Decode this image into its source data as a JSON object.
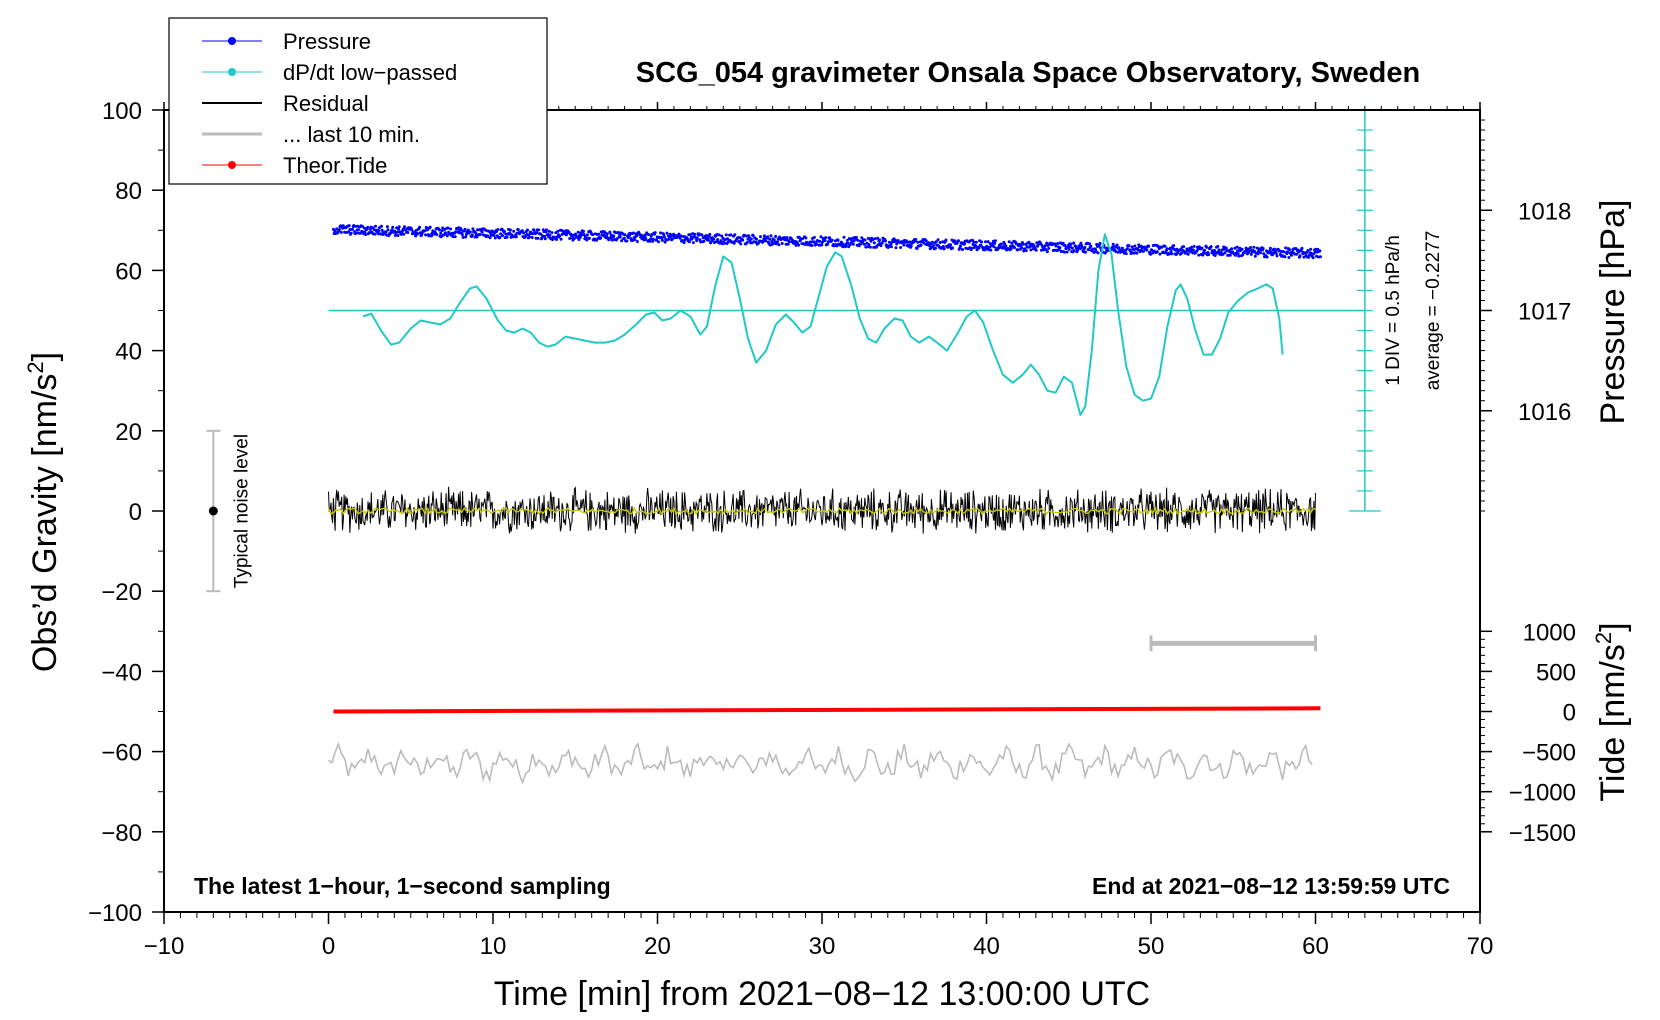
{
  "chart_data": {
    "type": "line",
    "title": "SCG_054 gravimeter Onsala Space Observatory, Sweden",
    "xlabel": "Time [min] from 2021−08−12 13:00:00 UTC",
    "ylabel_left": "Obs’d Gravity [nm/s",
    "ylabel_left_sup": "2",
    "ylabel_left_close": "]",
    "ylabel_right_pressure": "Pressure [hPa]",
    "ylabel_right_tide": "Tide [nm/s",
    "ylabel_right_tide_sup": "2",
    "ylabel_right_tide_close": "]",
    "xlim": [
      -10,
      70
    ],
    "ylim": [
      -100,
      100
    ],
    "x_ticks": [
      {
        "value": -10,
        "label": "−10"
      },
      {
        "value": 0,
        "label": "0"
      },
      {
        "value": 10,
        "label": "10"
      },
      {
        "value": 20,
        "label": "20"
      },
      {
        "value": 30,
        "label": "30"
      },
      {
        "value": 40,
        "label": "40"
      },
      {
        "value": 50,
        "label": "50"
      },
      {
        "value": 60,
        "label": "60"
      },
      {
        "value": 70,
        "label": "70"
      }
    ],
    "y_ticks": [
      {
        "value": 100,
        "label": "100"
      },
      {
        "value": 80,
        "label": "80"
      },
      {
        "value": 60,
        "label": "60"
      },
      {
        "value": 40,
        "label": "40"
      },
      {
        "value": 20,
        "label": "20"
      },
      {
        "value": 0,
        "label": "0"
      },
      {
        "value": -20,
        "label": "−20"
      },
      {
        "value": -40,
        "label": "−40"
      },
      {
        "value": -60,
        "label": "−60"
      },
      {
        "value": -80,
        "label": "−80"
      },
      {
        "value": -100,
        "label": "−100"
      }
    ],
    "pressure_axis": {
      "scale_gravity_per_hpa": 25,
      "gravity_at_1017": 50,
      "ticks": [
        {
          "value": 1018,
          "label": "1018"
        },
        {
          "value": 1017,
          "label": "1017"
        },
        {
          "value": 1016,
          "label": "1016"
        }
      ]
    },
    "tide_axis": {
      "scale_gravity_per_unit": 0.02,
      "gravity_at_zero": -50,
      "ticks": [
        {
          "value": 1000,
          "label": "1000"
        },
        {
          "value": 500,
          "label": "500"
        },
        {
          "value": 0,
          "label": "0"
        },
        {
          "value": -500,
          "label": "−500"
        },
        {
          "value": -1000,
          "label": "−1000"
        },
        {
          "value": -1500,
          "label": "−1500"
        }
      ]
    },
    "dpdt_axis": {
      "x_min": 63,
      "y_bottom": 0,
      "y_top": 100,
      "divisions": 20,
      "label": "1 DIV = 0.5 hPa/h",
      "average_label": "average = −0.2277",
      "reference_level": 50
    },
    "series": [
      {
        "name": "Pressure",
        "color": "#0000ff",
        "marker": "dot",
        "start": 70.2,
        "end": 64.2,
        "noise": 1.2,
        "x_range": [
          0.3,
          60.3
        ]
      },
      {
        "name": "dP/dt low−passed",
        "color": "#20c8c8",
        "marker": "dot",
        "points": [
          [
            2.1,
            48.5
          ],
          [
            2.6,
            49.2
          ],
          [
            3.2,
            45.0
          ],
          [
            3.8,
            41.5
          ],
          [
            4.3,
            42.0
          ],
          [
            5.0,
            45.5
          ],
          [
            5.6,
            47.5
          ],
          [
            6.2,
            47.0
          ],
          [
            6.8,
            46.5
          ],
          [
            7.4,
            48.0
          ],
          [
            8.0,
            52.0
          ],
          [
            8.6,
            55.5
          ],
          [
            9.0,
            56.0
          ],
          [
            9.6,
            53.0
          ],
          [
            10.3,
            47.5
          ],
          [
            10.8,
            45.0
          ],
          [
            11.3,
            44.5
          ],
          [
            11.8,
            45.5
          ],
          [
            12.3,
            44.5
          ],
          [
            12.8,
            42.0
          ],
          [
            13.3,
            41.0
          ],
          [
            13.8,
            41.5
          ],
          [
            14.4,
            43.5
          ],
          [
            15.0,
            43.0
          ],
          [
            15.6,
            42.5
          ],
          [
            16.2,
            42.0
          ],
          [
            16.8,
            42.0
          ],
          [
            17.4,
            42.5
          ],
          [
            18.0,
            44.0
          ],
          [
            18.7,
            46.5
          ],
          [
            19.3,
            49.0
          ],
          [
            19.8,
            49.5
          ],
          [
            20.3,
            47.5
          ],
          [
            20.8,
            48.0
          ],
          [
            21.4,
            50.0
          ],
          [
            22.0,
            48.5
          ],
          [
            22.6,
            44.0
          ],
          [
            23.0,
            46.0
          ],
          [
            23.5,
            56.0
          ],
          [
            24.0,
            63.5
          ],
          [
            24.5,
            62.0
          ],
          [
            25.0,
            53.0
          ],
          [
            25.5,
            43.0
          ],
          [
            26.0,
            37.0
          ],
          [
            26.6,
            40.0
          ],
          [
            27.2,
            46.5
          ],
          [
            27.8,
            49.0
          ],
          [
            28.3,
            47.0
          ],
          [
            28.8,
            44.5
          ],
          [
            29.3,
            46.0
          ],
          [
            29.8,
            53.5
          ],
          [
            30.3,
            61.0
          ],
          [
            30.8,
            64.5
          ],
          [
            31.2,
            63.5
          ],
          [
            31.8,
            56.0
          ],
          [
            32.3,
            48.0
          ],
          [
            32.8,
            43.0
          ],
          [
            33.3,
            42.0
          ],
          [
            33.8,
            45.5
          ],
          [
            34.4,
            48.0
          ],
          [
            34.9,
            47.5
          ],
          [
            35.4,
            43.5
          ],
          [
            35.9,
            42.0
          ],
          [
            36.5,
            43.5
          ],
          [
            37.0,
            42.0
          ],
          [
            37.6,
            40.0
          ],
          [
            38.2,
            44.0
          ],
          [
            38.8,
            48.5
          ],
          [
            39.3,
            50.0
          ],
          [
            39.8,
            47.0
          ],
          [
            40.4,
            40.0
          ],
          [
            41.0,
            34.0
          ],
          [
            41.6,
            32.0
          ],
          [
            42.2,
            34.0
          ],
          [
            42.7,
            36.5
          ],
          [
            43.2,
            34.0
          ],
          [
            43.7,
            30.0
          ],
          [
            44.2,
            29.5
          ],
          [
            44.7,
            33.5
          ],
          [
            45.2,
            32.0
          ],
          [
            45.7,
            24.0
          ],
          [
            46.0,
            26.0
          ],
          [
            46.4,
            40.0
          ],
          [
            46.8,
            60.0
          ],
          [
            47.2,
            69.0
          ],
          [
            47.6,
            64.0
          ],
          [
            48.0,
            50.0
          ],
          [
            48.5,
            36.0
          ],
          [
            49.0,
            29.0
          ],
          [
            49.5,
            27.5
          ],
          [
            50.0,
            28.0
          ],
          [
            50.5,
            33.5
          ],
          [
            51.0,
            46.0
          ],
          [
            51.5,
            55.0
          ],
          [
            51.8,
            56.5
          ],
          [
            52.2,
            53.0
          ],
          [
            52.7,
            45.0
          ],
          [
            53.2,
            39.0
          ],
          [
            53.7,
            39.0
          ],
          [
            54.2,
            43.0
          ],
          [
            54.7,
            49.5
          ],
          [
            55.3,
            52.5
          ],
          [
            55.9,
            54.5
          ],
          [
            56.5,
            55.5
          ],
          [
            57.0,
            56.5
          ],
          [
            57.4,
            55.5
          ],
          [
            57.8,
            48.0
          ],
          [
            58.0,
            39.0
          ]
        ]
      },
      {
        "name": "Residual",
        "color": "#000000",
        "marker": "line",
        "x_range": [
          0,
          60
        ],
        "amplitude": 4.5,
        "center": 0
      },
      {
        "name": "... last 10 min.",
        "color": "#bbbbbb",
        "marker": "line",
        "x_range": [
          0,
          60
        ],
        "amplitude": 2.5,
        "center": -63
      },
      {
        "name": "Theor.Tide",
        "color": "#ff0000",
        "marker": "dot",
        "x_range": [
          0.3,
          60.3
        ],
        "start": -50.0,
        "end": -49.2
      }
    ],
    "residual_smooth_color": "#c8c800",
    "noise_level": {
      "x": -7,
      "center": 0,
      "half_range": 20,
      "label": "Typical noise level"
    },
    "last10_bar": {
      "x_start": 50,
      "x_end": 60,
      "y": -33
    },
    "dpdt_reference_line_x": [
      0,
      63
    ],
    "annotations": {
      "bottom_left": "The latest 1−hour, 1−second sampling",
      "bottom_right": "End at 2021−08−12 13:59:59 UTC"
    },
    "legend": [
      {
        "label": "Pressure",
        "color": "#0000ff",
        "style": "line-dot"
      },
      {
        "label": "dP/dt low−passed",
        "color": "#20c8c8",
        "style": "line-dot"
      },
      {
        "label": "Residual",
        "color": "#000000",
        "style": "line"
      },
      {
        "label": "... last 10 min.",
        "color": "#bbbbbb",
        "style": "thick-line"
      },
      {
        "label": "Theor.Tide",
        "color": "#ff0000",
        "style": "line-dot"
      }
    ]
  }
}
